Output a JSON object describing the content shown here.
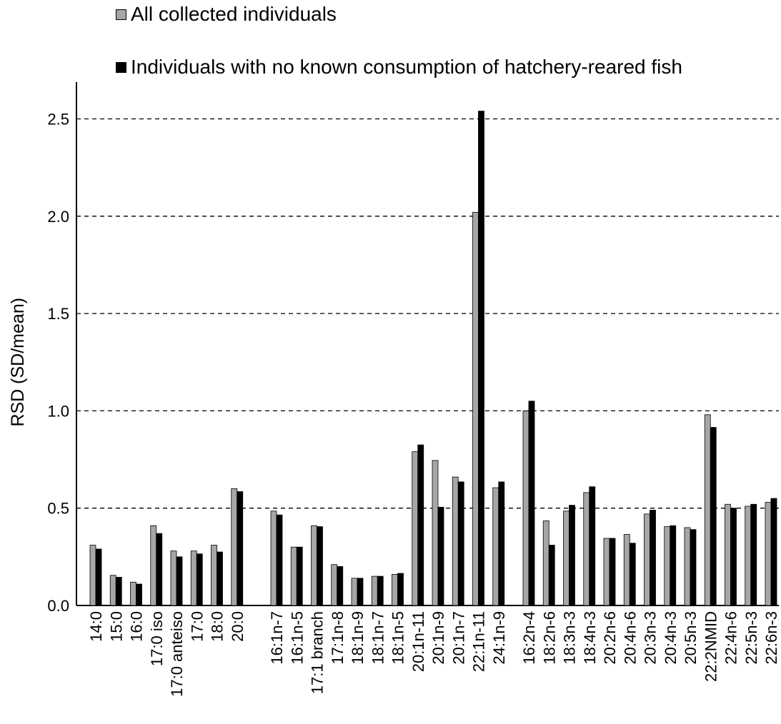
{
  "chart_data": {
    "type": "bar",
    "ylabel": "RSD (SD/mean)",
    "ylim": [
      0,
      2.7
    ],
    "yticks": [
      "0.0",
      "0.5",
      "1.0",
      "1.5",
      "2.0",
      "2.5"
    ],
    "grid": "dashed horizontal at 0.5, 1.0, 1.5, 2.0, 2.5",
    "legend_position": "top-left",
    "colors": {
      "all": "#a6a6a6",
      "no_hatchery": "#000000"
    },
    "groups": [
      {
        "categories": [
          "14:0",
          "15:0",
          "16:0",
          "17:0 iso",
          "17:0 anteiso",
          "17:0",
          "18:0",
          "20:0"
        ]
      },
      {
        "categories": [
          "16:1n-7",
          "16:1n-5",
          "17:1 branch",
          "17:1n-8",
          "18:1n-9",
          "18:1n-7",
          "18:1n-5",
          "20:1n-11",
          "20:1n-9",
          "20:1n-7",
          "22:1n-11",
          "24:1n-9"
        ]
      },
      {
        "categories": [
          "16:2n-4",
          "18:2n-6",
          "18:3n-3",
          "18:4n-3",
          "20:2n-6",
          "20:4n-6",
          "20:3n-3",
          "20:4n-3",
          "20:5n-3",
          "22:2NMID",
          "22:4n-6",
          "22:5n-3",
          "22:6n-3"
        ]
      }
    ],
    "series": [
      {
        "name": "All collected individuals",
        "values": [
          0.31,
          0.155,
          0.12,
          0.41,
          0.28,
          0.28,
          0.31,
          0.6,
          0.485,
          0.3,
          0.41,
          0.21,
          0.14,
          0.15,
          0.16,
          0.79,
          0.745,
          0.66,
          2.02,
          0.605,
          1.0,
          0.435,
          0.485,
          0.58,
          0.345,
          0.365,
          0.47,
          0.405,
          0.4,
          0.98,
          0.52,
          0.51,
          0.53
        ]
      },
      {
        "name": "Individuals with no known consumption of hatchery-reared fish",
        "values": [
          0.29,
          0.145,
          0.11,
          0.37,
          0.25,
          0.265,
          0.275,
          0.585,
          0.465,
          0.3,
          0.405,
          0.2,
          0.14,
          0.15,
          0.165,
          0.825,
          0.505,
          0.635,
          2.54,
          0.635,
          1.05,
          0.31,
          0.515,
          0.61,
          0.345,
          0.32,
          0.49,
          0.41,
          0.39,
          0.915,
          0.5,
          0.52,
          0.55
        ]
      }
    ]
  }
}
